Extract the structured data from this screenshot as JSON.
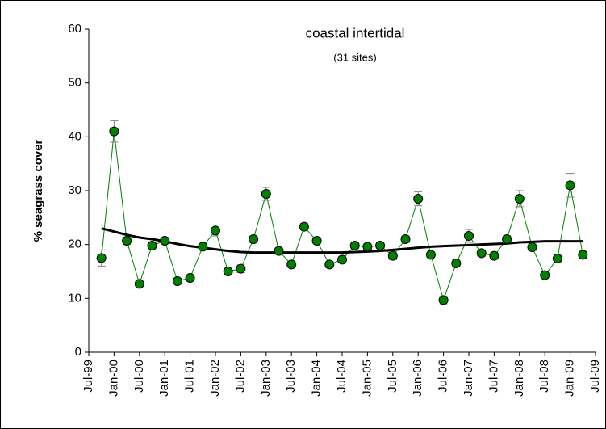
{
  "chart_data": {
    "type": "line",
    "title": "coastal intertidal",
    "subtitle": "(31 sites)",
    "y_label": "% seagrass cover",
    "x": [
      "1999-10",
      "2000-01",
      "2000-04",
      "2000-07",
      "2000-10",
      "2001-01",
      "2001-04",
      "2001-07",
      "2001-10",
      "2002-01",
      "2002-04",
      "2002-07",
      "2002-10",
      "2003-01",
      "2003-04",
      "2003-07",
      "2003-10",
      "2004-01",
      "2004-04",
      "2004-07",
      "2004-10",
      "2005-01",
      "2005-04",
      "2005-07",
      "2005-10",
      "2006-01",
      "2006-04",
      "2006-07",
      "2006-10",
      "2007-01",
      "2007-04",
      "2007-07",
      "2007-10",
      "2008-01",
      "2008-04",
      "2008-07",
      "2008-10",
      "2009-01",
      "2009-04"
    ],
    "series": [
      {
        "color": "#008000",
        "values": [
          17.5,
          41,
          20.7,
          12.7,
          19.8,
          20.7,
          13.2,
          13.8,
          19.6,
          22.6,
          15,
          15.5,
          21,
          29.4,
          18.8,
          16.3,
          23.3,
          20.7,
          16.3,
          17.2,
          19.8,
          19.6,
          19.8,
          17.9,
          21,
          28.5,
          18.1,
          9.7,
          16.5,
          21.6,
          18.4,
          17.9,
          21,
          28.5,
          19.5,
          14.3,
          17.4,
          31,
          18.1
        ],
        "errors": [
          1.5,
          2,
          0.7,
          0.5,
          0.6,
          0.6,
          0.5,
          0.5,
          0.5,
          1,
          0.6,
          0.7,
          0.6,
          1.2,
          0.6,
          0.5,
          0.6,
          0.6,
          0.6,
          0.5,
          0.5,
          0.5,
          0.5,
          0.7,
          0.6,
          1.3,
          0.5,
          0.7,
          0.6,
          1.2,
          0.6,
          0.6,
          0.6,
          1.5,
          0.6,
          0.6,
          0.6,
          2.2,
          0.6
        ]
      }
    ],
    "trend": {
      "color": "#000000",
      "values": [
        23,
        22.4,
        21.8,
        21.3,
        21,
        20.6,
        20.1,
        19.7,
        19.4,
        19.1,
        18.8,
        18.6,
        18.5,
        18.5,
        18.5,
        18.5,
        18.5,
        18.5,
        18.5,
        18.5,
        18.6,
        18.7,
        18.8,
        19,
        19.2,
        19.4,
        19.6,
        19.7,
        19.8,
        19.9,
        20,
        20.1,
        20.2,
        20.4,
        20.5,
        20.6,
        20.6,
        20.6,
        20.6
      ]
    },
    "xlim": [
      "1999-07",
      "2009-07"
    ],
    "xticks": [
      {
        "value": "1999-07",
        "label": "Jul-99"
      },
      {
        "value": "2000-01",
        "label": "Jan-00"
      },
      {
        "value": "2000-07",
        "label": "Jul-00"
      },
      {
        "value": "2001-01",
        "label": "Jan-01"
      },
      {
        "value": "2001-07",
        "label": "Jul-01"
      },
      {
        "value": "2002-01",
        "label": "Jan-02"
      },
      {
        "value": "2002-07",
        "label": "Jul-02"
      },
      {
        "value": "2003-01",
        "label": "Jan-03"
      },
      {
        "value": "2003-07",
        "label": "Jul-03"
      },
      {
        "value": "2004-01",
        "label": "Jan-04"
      },
      {
        "value": "2004-07",
        "label": "Jul-04"
      },
      {
        "value": "2005-01",
        "label": "Jan-05"
      },
      {
        "value": "2005-07",
        "label": "Jul-05"
      },
      {
        "value": "2006-01",
        "label": "Jan-06"
      },
      {
        "value": "2006-07",
        "label": "Jul-06"
      },
      {
        "value": "2007-01",
        "label": "Jan-07"
      },
      {
        "value": "2007-07",
        "label": "Jul-07"
      },
      {
        "value": "2008-01",
        "label": "Jan-08"
      },
      {
        "value": "2008-07",
        "label": "Jul-08"
      },
      {
        "value": "2009-01",
        "label": "Jan-09"
      },
      {
        "value": "2009-07",
        "label": "Jul-09"
      }
    ],
    "ylim": [
      0,
      60
    ],
    "yticks": [
      0,
      10,
      20,
      30,
      40,
      50,
      60
    ]
  }
}
